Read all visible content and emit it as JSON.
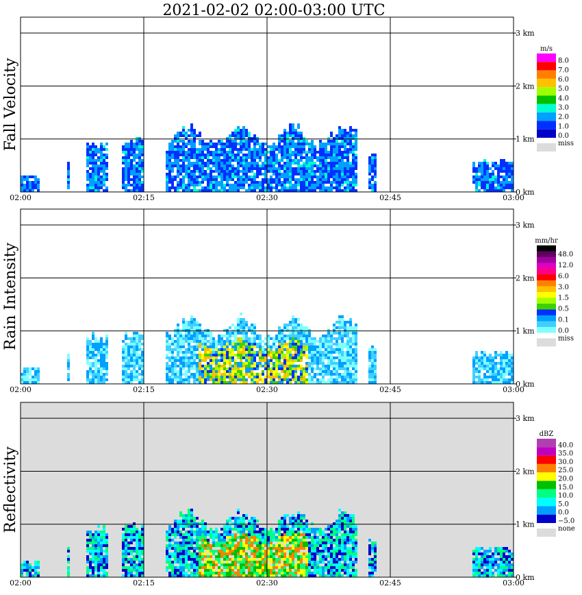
{
  "title": "2021-02-02   02:00-03:00 UTC",
  "chart_data": [
    {
      "type": "heatmap",
      "ylabel": "Fall Velocity",
      "x_ticks": [
        "02:00",
        "02:15",
        "02:30",
        "02:45",
        "03:00"
      ],
      "y_ticks": [
        "0 km",
        "1 km",
        "2 km",
        "3 km"
      ],
      "colorbar": {
        "unit": "m/s",
        "labels": [
          "8.0",
          "7.0",
          "6.0",
          "5.0",
          "4.0",
          "3.0",
          "2.0",
          "1.0",
          "0.0"
        ],
        "colors": [
          "#ff00ff",
          "#ff0000",
          "#ff8000",
          "#ffc000",
          "#a0ff00",
          "#00c000",
          "#00ffd0",
          "#00a0ff",
          "#0030ff",
          "#0000c8"
        ],
        "missing_label": "miss",
        "missing_color": "#dcdcdc"
      },
      "background": "#ffffff"
    },
    {
      "type": "heatmap",
      "ylabel": "Rain Intensity",
      "x_ticks": [
        "02:00",
        "02:15",
        "02:30",
        "02:45",
        "03:00"
      ],
      "y_ticks": [
        "0 km",
        "1 km",
        "2 km",
        "3 km"
      ],
      "colorbar": {
        "unit": "mm/hr",
        "labels": [
          "48.0",
          "12.0",
          "6.0",
          "3.0",
          "1.5",
          "0.5",
          "0.1",
          "0.0"
        ],
        "colors": [
          "#000000",
          "#600060",
          "#a000a0",
          "#e000c0",
          "#ff0080",
          "#ff0000",
          "#ff8000",
          "#ffc000",
          "#ffff00",
          "#a0ff00",
          "#40d000",
          "#0030ff",
          "#00a0ff",
          "#40d0ff",
          "#80ffff"
        ],
        "missing_label": "miss",
        "missing_color": "#dcdcdc"
      },
      "background": "#ffffff"
    },
    {
      "type": "heatmap",
      "ylabel": "Reflectivity",
      "x_ticks": [
        "02:00",
        "02:15",
        "02:30",
        "02:45",
        "03:00"
      ],
      "y_ticks": [
        "0 km",
        "1 km",
        "2 km",
        "3 km"
      ],
      "colorbar": {
        "unit": "dBZ",
        "labels": [
          "40.0",
          "35.0",
          "30.0",
          "25.0",
          "20.0",
          "15.0",
          "10.0",
          "5.0",
          "0.0",
          "−5.0"
        ],
        "colors": [
          "#b040b0",
          "#c000c0",
          "#ff0000",
          "#ff8000",
          "#ffff00",
          "#00c000",
          "#00ff80",
          "#00ffff",
          "#00a0ff",
          "#0000c8"
        ],
        "missing_label": "none",
        "missing_color": "#dcdcdc"
      },
      "background": "#dcdcdc"
    }
  ]
}
